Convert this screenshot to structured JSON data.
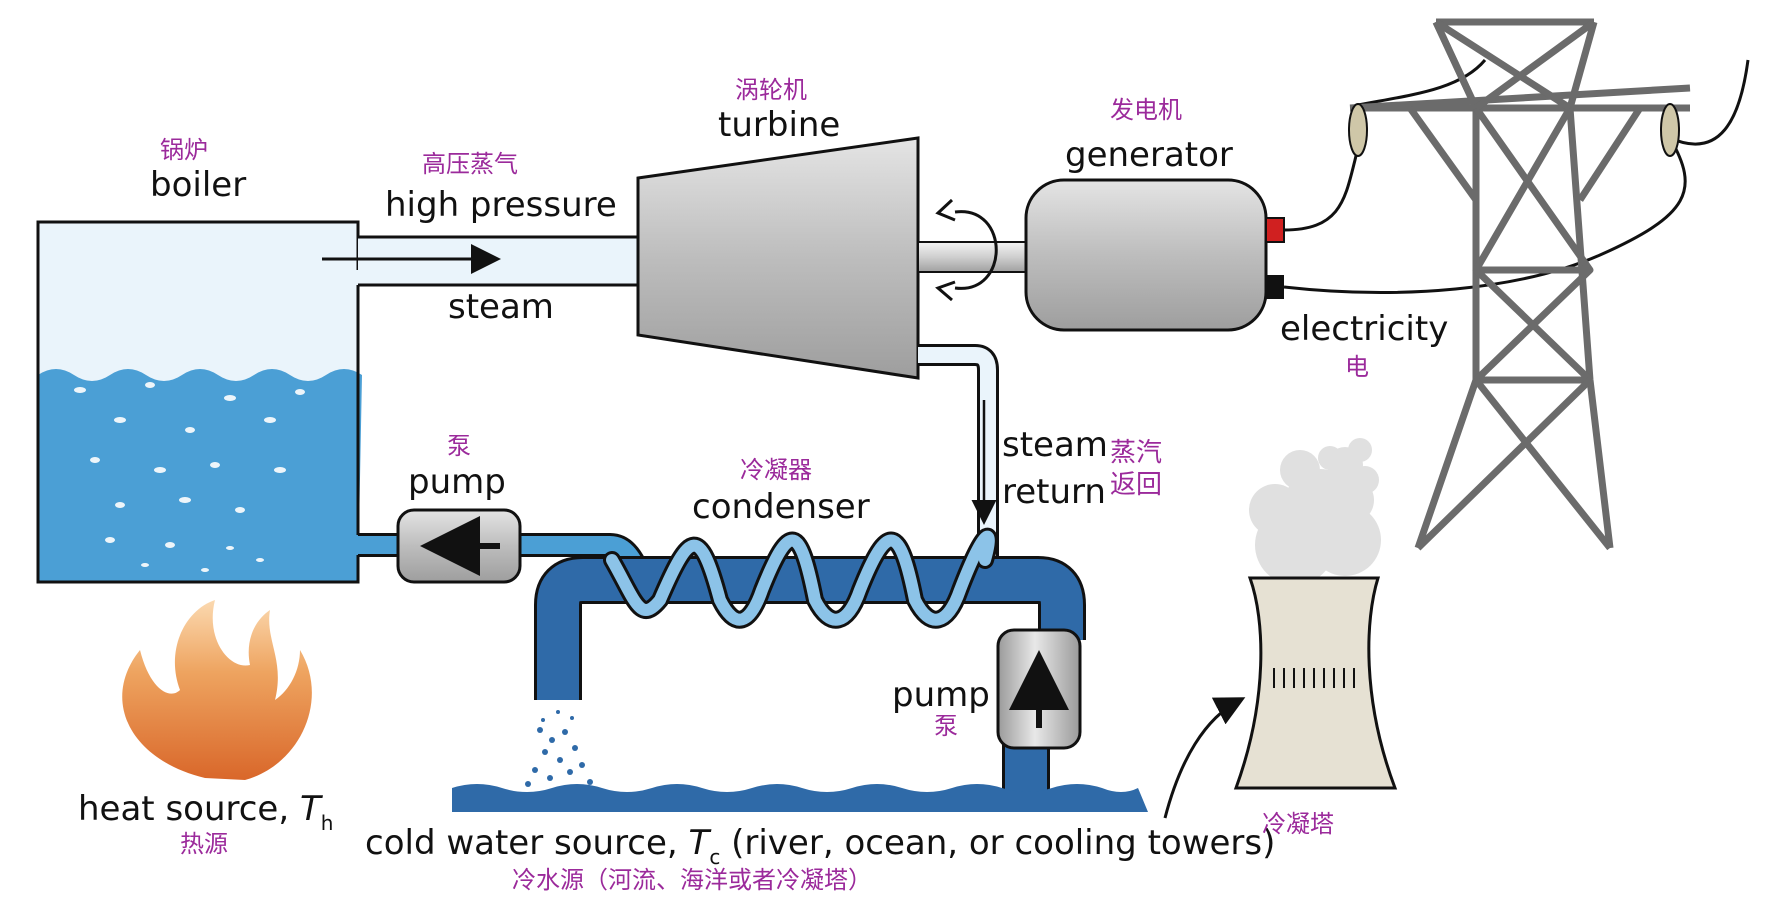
{
  "labels": {
    "boiler_zh": "锅炉",
    "boiler_en": "boiler",
    "steam_top_zh": "高压蒸气",
    "steam_top_en": "high pressure",
    "steam_bottom_en": "steam",
    "turbine_zh": "涡轮机",
    "turbine_en": "turbine",
    "generator_zh": "发电机",
    "generator_en": "generator",
    "electricity_en": "electricity",
    "electricity_zh": "电",
    "steam_return_en_1": "steam",
    "steam_return_en_2": "return",
    "steam_return_zh_1": "蒸汽",
    "steam_return_zh_2": "返回",
    "pump_left_zh": "泵",
    "pump_left_en": "pump",
    "condenser_zh": "冷凝器",
    "condenser_en": "condenser",
    "pump_right_en": "pump",
    "pump_right_zh": "泵",
    "heat_source_en": "heat source, ",
    "heat_source_T": "T",
    "heat_source_sub": "h",
    "heat_source_zh": "热源",
    "cold_source_en_a": "cold water source, ",
    "cold_source_T": "T",
    "cold_source_sub": "c",
    "cold_source_en_b": " (river, ocean, or cooling towers)",
    "cold_source_zh": "冷水源（河流、海洋或者冷凝塔）",
    "cooling_tower_zh": "冷凝塔"
  },
  "colors": {
    "water": "#4b9fd5",
    "water_light": "#eaf4fb",
    "pipe_dark": "#2f6aa8",
    "coil": "#8cc3e8",
    "machine_gray": "#c9c9c9",
    "tower_steel": "#6b6b6b",
    "flame": "#e8863a",
    "tower_body": "#e6e1d3",
    "label_zh": "#9b2a9b"
  }
}
